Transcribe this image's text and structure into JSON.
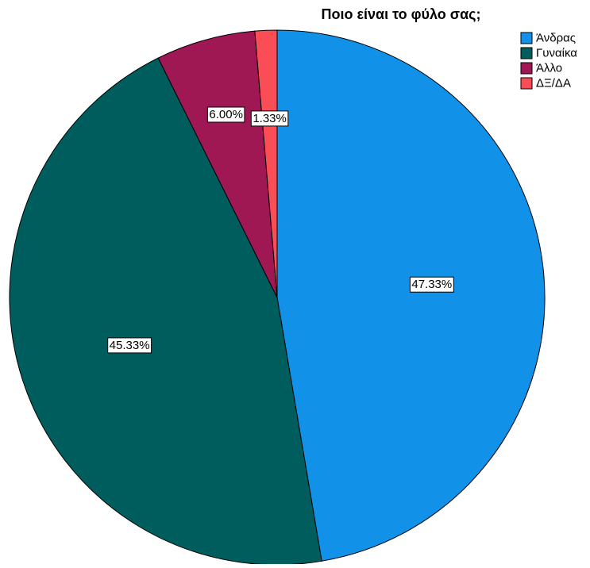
{
  "chart_data": {
    "type": "pie",
    "title": "Ποιο είναι το φύλο σας;",
    "categories": [
      "Άνδρας",
      "Γυναίκα",
      "Άλλο",
      "ΔΞ/ΔΑ"
    ],
    "values": [
      47.33,
      45.33,
      6.0,
      1.33
    ],
    "data_labels": [
      "47.33%",
      "45.33%",
      "6.00%",
      "1.33%"
    ],
    "colors": [
      "#1192e8",
      "#005d5d",
      "#9f1853",
      "#fa4d56"
    ],
    "start_angle": "12 o'clock",
    "direction": "clockwise",
    "legend": "top-right"
  }
}
